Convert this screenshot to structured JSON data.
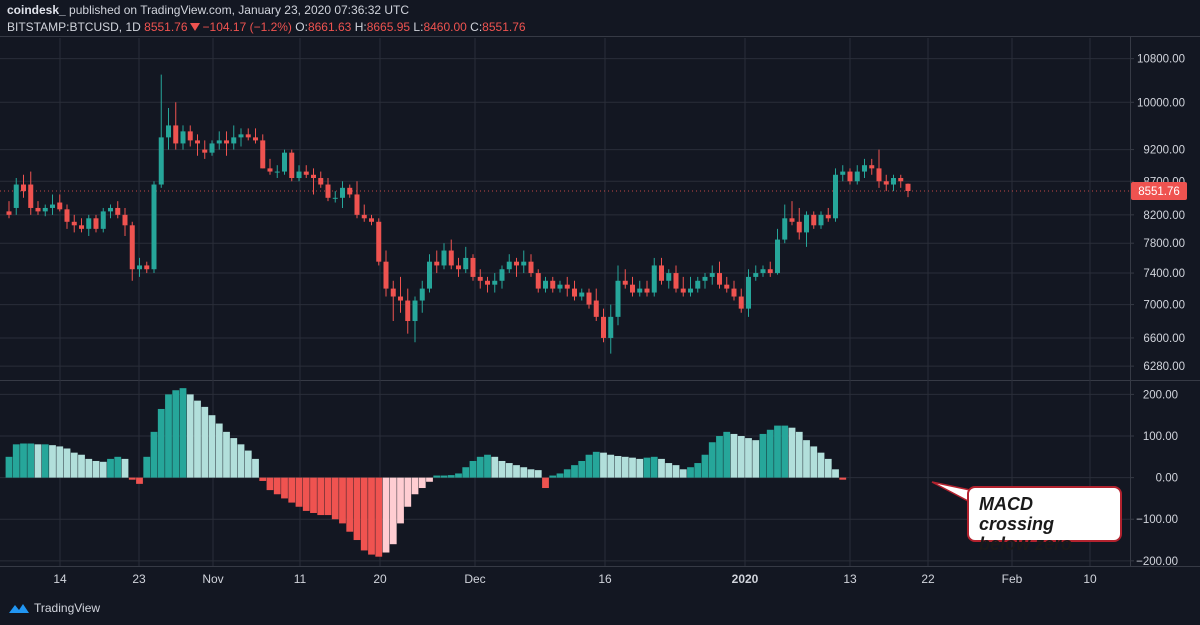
{
  "header": {
    "publisher": "coindesk_",
    "published_text": "published on TradingView.com, January 23, 2020 07:36:32 UTC",
    "symbol": "BITSTAMP:BTCUSD, 1D",
    "last": "8551.76",
    "change": "−104.17 (−1.2%)",
    "o_label": "O:",
    "o_val": "8661.63",
    "h_label": "H:",
    "h_val": "8665.95",
    "l_label": "L:",
    "l_val": "8460.00",
    "c_label": "C:",
    "c_val": "8551.76"
  },
  "footer": {
    "brand": "TradingView"
  },
  "annotation": {
    "line1": "MACD crossing",
    "line2": "below zero"
  },
  "colors": {
    "up": "#26a69a",
    "down": "#ef5350",
    "hist_pos_strong": "#26a69a",
    "hist_pos_weak": "#b2dfdb",
    "hist_neg_strong": "#ef5350",
    "hist_neg_weak": "#ffcdd2",
    "grid": "#2a2e39",
    "axis_text": "#d1d4dc",
    "price_tag": "#ef5350"
  },
  "chart_data": [
    {
      "type": "candlestick",
      "symbol": "BITSTAMP:BTCUSD",
      "interval": "1D",
      "x_tick_labels": [
        "14",
        "23",
        "Nov",
        "11",
        "20",
        "Dec",
        "16",
        "2020",
        "13",
        "22",
        "Feb",
        "10"
      ],
      "y_tick_labels": [
        "10800.00",
        "10000.00",
        "9200.00",
        "8700.00",
        "8200.00",
        "7800.00",
        "7400.00",
        "7000.00",
        "6600.00",
        "6280.00"
      ],
      "y_ticks": [
        10800,
        10000,
        9200,
        8700,
        8200,
        7800,
        7400,
        7000,
        6600,
        6280
      ],
      "ylim": [
        6150,
        11200
      ],
      "last_price_label": "8551.76",
      "scale": "log",
      "grid": true,
      "candles": [
        {
          "o": 8250,
          "h": 8400,
          "l": 8150,
          "c": 8200
        },
        {
          "o": 8300,
          "h": 8750,
          "l": 8200,
          "c": 8650
        },
        {
          "o": 8650,
          "h": 8800,
          "l": 8450,
          "c": 8550
        },
        {
          "o": 8650,
          "h": 8850,
          "l": 8200,
          "c": 8300
        },
        {
          "o": 8300,
          "h": 8400,
          "l": 8200,
          "c": 8250
        },
        {
          "o": 8250,
          "h": 8350,
          "l": 8180,
          "c": 8300
        },
        {
          "o": 8300,
          "h": 8500,
          "l": 8200,
          "c": 8350
        },
        {
          "o": 8380,
          "h": 8500,
          "l": 8250,
          "c": 8280
        },
        {
          "o": 8280,
          "h": 8350,
          "l": 8000,
          "c": 8100
        },
        {
          "o": 8100,
          "h": 8200,
          "l": 7950,
          "c": 8050
        },
        {
          "o": 8050,
          "h": 8150,
          "l": 7950,
          "c": 8000
        },
        {
          "o": 8000,
          "h": 8200,
          "l": 7900,
          "c": 8150
        },
        {
          "o": 8150,
          "h": 8200,
          "l": 7950,
          "c": 8000
        },
        {
          "o": 8000,
          "h": 8300,
          "l": 7950,
          "c": 8250
        },
        {
          "o": 8250,
          "h": 8350,
          "l": 8150,
          "c": 8300
        },
        {
          "o": 8300,
          "h": 8400,
          "l": 8150,
          "c": 8200
        },
        {
          "o": 8200,
          "h": 8300,
          "l": 7900,
          "c": 8050
        },
        {
          "o": 8050,
          "h": 8100,
          "l": 7300,
          "c": 7450
        },
        {
          "o": 7450,
          "h": 7600,
          "l": 7350,
          "c": 7500
        },
        {
          "o": 7500,
          "h": 7550,
          "l": 7400,
          "c": 7450
        },
        {
          "o": 7450,
          "h": 8700,
          "l": 7400,
          "c": 8650
        },
        {
          "o": 8650,
          "h": 10500,
          "l": 8600,
          "c": 9400
        },
        {
          "o": 9400,
          "h": 9900,
          "l": 9200,
          "c": 9600
        },
        {
          "o": 9600,
          "h": 10000,
          "l": 9200,
          "c": 9300
        },
        {
          "o": 9300,
          "h": 9600,
          "l": 9200,
          "c": 9500
        },
        {
          "o": 9500,
          "h": 9600,
          "l": 9250,
          "c": 9350
        },
        {
          "o": 9350,
          "h": 9450,
          "l": 9100,
          "c": 9300
        },
        {
          "o": 9200,
          "h": 9350,
          "l": 9050,
          "c": 9150
        },
        {
          "o": 9150,
          "h": 9350,
          "l": 9100,
          "c": 9300
        },
        {
          "o": 9300,
          "h": 9500,
          "l": 9200,
          "c": 9350
        },
        {
          "o": 9350,
          "h": 9500,
          "l": 9100,
          "c": 9300
        },
        {
          "o": 9300,
          "h": 9600,
          "l": 9200,
          "c": 9400
        },
        {
          "o": 9400,
          "h": 9550,
          "l": 9250,
          "c": 9450
        },
        {
          "o": 9450,
          "h": 9550,
          "l": 9350,
          "c": 9400
        },
        {
          "o": 9400,
          "h": 9550,
          "l": 9300,
          "c": 9350
        },
        {
          "o": 9350,
          "h": 9450,
          "l": 8900,
          "c": 8900
        },
        {
          "o": 8900,
          "h": 9050,
          "l": 8800,
          "c": 8850
        },
        {
          "o": 8850,
          "h": 8950,
          "l": 8750,
          "c": 8850
        },
        {
          "o": 8850,
          "h": 9200,
          "l": 8800,
          "c": 9150
        },
        {
          "o": 9150,
          "h": 9200,
          "l": 8700,
          "c": 8750
        },
        {
          "o": 8750,
          "h": 8950,
          "l": 8700,
          "c": 8850
        },
        {
          "o": 8850,
          "h": 8950,
          "l": 8750,
          "c": 8800
        },
        {
          "o": 8800,
          "h": 8900,
          "l": 8500,
          "c": 8750
        },
        {
          "o": 8750,
          "h": 8850,
          "l": 8600,
          "c": 8650
        },
        {
          "o": 8650,
          "h": 8750,
          "l": 8400,
          "c": 8450
        },
        {
          "o": 8450,
          "h": 8550,
          "l": 8380,
          "c": 8450
        },
        {
          "o": 8450,
          "h": 8700,
          "l": 8300,
          "c": 8600
        },
        {
          "o": 8600,
          "h": 8650,
          "l": 8450,
          "c": 8500
        },
        {
          "o": 8500,
          "h": 8700,
          "l": 8150,
          "c": 8200
        },
        {
          "o": 8200,
          "h": 8350,
          "l": 8100,
          "c": 8150
        },
        {
          "o": 8150,
          "h": 8200,
          "l": 8050,
          "c": 8100
        },
        {
          "o": 8100,
          "h": 8150,
          "l": 7500,
          "c": 7550
        },
        {
          "o": 7550,
          "h": 7700,
          "l": 7100,
          "c": 7200
        },
        {
          "o": 7200,
          "h": 7300,
          "l": 6800,
          "c": 7100
        },
        {
          "o": 7100,
          "h": 7350,
          "l": 6900,
          "c": 7050
        },
        {
          "o": 7050,
          "h": 7200,
          "l": 6650,
          "c": 6800
        },
        {
          "o": 6800,
          "h": 7100,
          "l": 6550,
          "c": 7050
        },
        {
          "o": 7050,
          "h": 7300,
          "l": 6900,
          "c": 7200
        },
        {
          "o": 7200,
          "h": 7650,
          "l": 7150,
          "c": 7550
        },
        {
          "o": 7550,
          "h": 7700,
          "l": 7400,
          "c": 7500
        },
        {
          "o": 7500,
          "h": 7800,
          "l": 7450,
          "c": 7700
        },
        {
          "o": 7700,
          "h": 7850,
          "l": 7450,
          "c": 7500
        },
        {
          "o": 7500,
          "h": 7600,
          "l": 7350,
          "c": 7450
        },
        {
          "o": 7450,
          "h": 7750,
          "l": 7400,
          "c": 7600
        },
        {
          "o": 7600,
          "h": 7650,
          "l": 7300,
          "c": 7350
        },
        {
          "o": 7350,
          "h": 7450,
          "l": 7200,
          "c": 7300
        },
        {
          "o": 7300,
          "h": 7350,
          "l": 7150,
          "c": 7250
        },
        {
          "o": 7250,
          "h": 7400,
          "l": 7150,
          "c": 7300
        },
        {
          "o": 7300,
          "h": 7500,
          "l": 7200,
          "c": 7450
        },
        {
          "o": 7450,
          "h": 7650,
          "l": 7400,
          "c": 7550
        },
        {
          "o": 7550,
          "h": 7600,
          "l": 7350,
          "c": 7500
        },
        {
          "o": 7500,
          "h": 7700,
          "l": 7400,
          "c": 7550
        },
        {
          "o": 7550,
          "h": 7650,
          "l": 7350,
          "c": 7400
        },
        {
          "o": 7400,
          "h": 7450,
          "l": 7150,
          "c": 7200
        },
        {
          "o": 7200,
          "h": 7350,
          "l": 7150,
          "c": 7300
        },
        {
          "o": 7300,
          "h": 7350,
          "l": 7150,
          "c": 7200
        },
        {
          "o": 7200,
          "h": 7300,
          "l": 7150,
          "c": 7250
        },
        {
          "o": 7250,
          "h": 7350,
          "l": 7100,
          "c": 7200
        },
        {
          "o": 7200,
          "h": 7300,
          "l": 7050,
          "c": 7100
        },
        {
          "o": 7100,
          "h": 7200,
          "l": 7050,
          "c": 7150
        },
        {
          "o": 7150,
          "h": 7200,
          "l": 6950,
          "c": 7000
        },
        {
          "o": 7050,
          "h": 7200,
          "l": 6800,
          "c": 6850
        },
        {
          "o": 6850,
          "h": 6950,
          "l": 6550,
          "c": 6600
        },
        {
          "o": 6600,
          "h": 7000,
          "l": 6420,
          "c": 6850
        },
        {
          "o": 6850,
          "h": 7500,
          "l": 6750,
          "c": 7300
        },
        {
          "o": 7300,
          "h": 7450,
          "l": 7200,
          "c": 7250
        },
        {
          "o": 7250,
          "h": 7350,
          "l": 7100,
          "c": 7150
        },
        {
          "o": 7150,
          "h": 7300,
          "l": 7100,
          "c": 7200
        },
        {
          "o": 7200,
          "h": 7300,
          "l": 7100,
          "c": 7150
        },
        {
          "o": 7150,
          "h": 7600,
          "l": 7100,
          "c": 7500
        },
        {
          "o": 7500,
          "h": 7600,
          "l": 7250,
          "c": 7300
        },
        {
          "o": 7300,
          "h": 7450,
          "l": 7200,
          "c": 7400
        },
        {
          "o": 7400,
          "h": 7500,
          "l": 7150,
          "c": 7200
        },
        {
          "o": 7200,
          "h": 7350,
          "l": 7100,
          "c": 7150
        },
        {
          "o": 7150,
          "h": 7350,
          "l": 7100,
          "c": 7200
        },
        {
          "o": 7200,
          "h": 7350,
          "l": 7150,
          "c": 7300
        },
        {
          "o": 7300,
          "h": 7400,
          "l": 7200,
          "c": 7350
        },
        {
          "o": 7350,
          "h": 7500,
          "l": 7250,
          "c": 7400
        },
        {
          "o": 7400,
          "h": 7550,
          "l": 7200,
          "c": 7250
        },
        {
          "o": 7250,
          "h": 7350,
          "l": 7150,
          "c": 7200
        },
        {
          "o": 7200,
          "h": 7300,
          "l": 7050,
          "c": 7100
        },
        {
          "o": 7100,
          "h": 7200,
          "l": 6900,
          "c": 6950
        },
        {
          "o": 6950,
          "h": 7450,
          "l": 6850,
          "c": 7350
        },
        {
          "o": 7350,
          "h": 7500,
          "l": 7300,
          "c": 7400
        },
        {
          "o": 7400,
          "h": 7500,
          "l": 7350,
          "c": 7450
        },
        {
          "o": 7450,
          "h": 7550,
          "l": 7350,
          "c": 7400
        },
        {
          "o": 7400,
          "h": 8000,
          "l": 7380,
          "c": 7850
        },
        {
          "o": 7850,
          "h": 8350,
          "l": 7800,
          "c": 8150
        },
        {
          "o": 8150,
          "h": 8400,
          "l": 8050,
          "c": 8100
        },
        {
          "o": 8100,
          "h": 8300,
          "l": 7850,
          "c": 7950
        },
        {
          "o": 7950,
          "h": 8250,
          "l": 7750,
          "c": 8200
        },
        {
          "o": 8200,
          "h": 8250,
          "l": 8000,
          "c": 8050
        },
        {
          "o": 8050,
          "h": 8250,
          "l": 8000,
          "c": 8200
        },
        {
          "o": 8200,
          "h": 8300,
          "l": 8100,
          "c": 8150
        },
        {
          "o": 8150,
          "h": 8900,
          "l": 8100,
          "c": 8800
        },
        {
          "o": 8800,
          "h": 8950,
          "l": 8700,
          "c": 8850
        },
        {
          "o": 8850,
          "h": 8900,
          "l": 8650,
          "c": 8700
        },
        {
          "o": 8700,
          "h": 8950,
          "l": 8650,
          "c": 8850
        },
        {
          "o": 8850,
          "h": 9050,
          "l": 8750,
          "c": 8950
        },
        {
          "o": 8950,
          "h": 9050,
          "l": 8800,
          "c": 8900
        },
        {
          "o": 8900,
          "h": 9200,
          "l": 8600,
          "c": 8700
        },
        {
          "o": 8700,
          "h": 8800,
          "l": 8550,
          "c": 8650
        },
        {
          "o": 8650,
          "h": 8800,
          "l": 8550,
          "c": 8750
        },
        {
          "o": 8750,
          "h": 8800,
          "l": 8600,
          "c": 8700
        },
        {
          "o": 8661.63,
          "h": 8665.95,
          "l": 8460,
          "c": 8551.76
        }
      ]
    },
    {
      "type": "bar",
      "name": "",
      "y_tick_labels": [
        "200.00",
        "100.00",
        "0.00",
        "−100.00",
        "−200.00"
      ],
      "y_ticks": [
        200,
        100,
        0,
        -100,
        -200
      ],
      "ylim": [
        -210,
        225
      ],
      "grid": true,
      "values": [
        50,
        80,
        82,
        82,
        80,
        80,
        78,
        75,
        70,
        60,
        55,
        45,
        40,
        38,
        45,
        50,
        45,
        -5,
        -15,
        50,
        110,
        165,
        200,
        210,
        215,
        200,
        185,
        170,
        150,
        130,
        110,
        95,
        80,
        65,
        45,
        -8,
        -30,
        -40,
        -50,
        -60,
        -70,
        -80,
        -85,
        -90,
        -90,
        -100,
        -110,
        -130,
        -150,
        -175,
        -185,
        -190,
        -180,
        -160,
        -110,
        -70,
        -40,
        -25,
        -10,
        5,
        5,
        6,
        10,
        25,
        40,
        50,
        55,
        50,
        40,
        35,
        30,
        25,
        20,
        18,
        -25,
        5,
        10,
        20,
        30,
        40,
        55,
        62,
        60,
        55,
        52,
        50,
        48,
        45,
        48,
        50,
        45,
        35,
        30,
        20,
        25,
        35,
        55,
        85,
        100,
        110,
        105,
        100,
        95,
        90,
        105,
        115,
        125,
        125,
        120,
        110,
        90,
        75,
        60,
        45,
        20,
        -5
      ]
    }
  ]
}
